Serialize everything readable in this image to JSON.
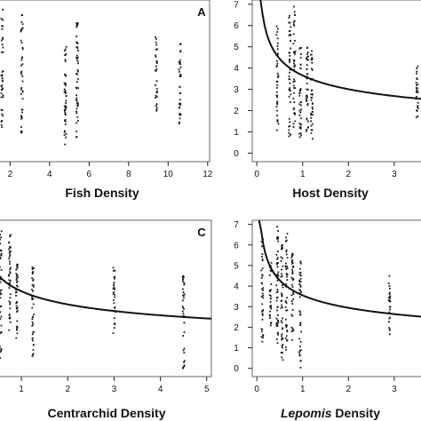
{
  "colors": {
    "points": "#1a1a1a",
    "curve": "#111111",
    "frame": "#666666"
  },
  "chart_data": [
    {
      "panel": "A",
      "type": "scatter",
      "xlabel": "Fish Density",
      "xlim": [
        1.4,
        12.1
      ],
      "ylim": [
        -0.4,
        7.2
      ],
      "xticks": [
        "2",
        "4",
        "6",
        "8",
        "10",
        "12"
      ],
      "yticks": [],
      "columns": [
        {
          "x": 1.6,
          "ymin": 1.2,
          "ymax": 6.9,
          "n": 42
        },
        {
          "x": 2.6,
          "ymin": 0.8,
          "ymax": 6.6,
          "n": 40
        },
        {
          "x": 4.8,
          "ymin": 0.4,
          "ymax": 5.2,
          "n": 45
        },
        {
          "x": 5.4,
          "ymin": 0.6,
          "ymax": 6.3,
          "n": 48
        },
        {
          "x": 9.4,
          "ymin": 1.9,
          "ymax": 5.7,
          "n": 30
        },
        {
          "x": 10.6,
          "ymin": 1.2,
          "ymax": 5.2,
          "n": 34
        }
      ],
      "fit": null
    },
    {
      "panel": "",
      "type": "scatter",
      "xlabel": "Host Density",
      "xlim": [
        -0.1,
        3.7
      ],
      "ylim": [
        -0.4,
        7.2
      ],
      "xticks": [
        "0",
        "1",
        "2",
        "3"
      ],
      "yticks": [
        "0",
        "1",
        "2",
        "3",
        "4",
        "5",
        "6",
        "7"
      ],
      "columns": [
        {
          "x": 0.45,
          "ymin": 0.8,
          "ymax": 6.1,
          "n": 40
        },
        {
          "x": 0.72,
          "ymin": 0.6,
          "ymax": 6.5,
          "n": 44
        },
        {
          "x": 0.82,
          "ymin": 1.0,
          "ymax": 6.9,
          "n": 44
        },
        {
          "x": 0.95,
          "ymin": 0.5,
          "ymax": 5.2,
          "n": 38
        },
        {
          "x": 1.1,
          "ymin": 1.0,
          "ymax": 5.0,
          "n": 38
        },
        {
          "x": 1.2,
          "ymin": 0.3,
          "ymax": 5.2,
          "n": 38
        },
        {
          "x": 3.5,
          "ymin": 1.6,
          "ymax": 4.1,
          "n": 26
        }
      ],
      "fit": {
        "x_start": 0.08,
        "x_end": 3.7,
        "a": 3.65,
        "b": -0.28
      }
    },
    {
      "panel": "C",
      "type": "scatter",
      "xlabel": "Centrarchid Density",
      "xlim": [
        0.5,
        5.1
      ],
      "ylim": [
        -0.4,
        7.2
      ],
      "xticks": [
        "1",
        "2",
        "3",
        "4",
        "5"
      ],
      "yticks": [],
      "columns": [
        {
          "x": 0.55,
          "ymin": 0.3,
          "ymax": 6.7,
          "n": 40
        },
        {
          "x": 0.75,
          "ymin": 1.0,
          "ymax": 6.5,
          "n": 46
        },
        {
          "x": 0.9,
          "ymin": 1.1,
          "ymax": 5.3,
          "n": 40
        },
        {
          "x": 1.25,
          "ymin": 0.2,
          "ymax": 5.0,
          "n": 40
        },
        {
          "x": 3.0,
          "ymin": 1.6,
          "ymax": 4.9,
          "n": 28
        },
        {
          "x": 4.5,
          "ymin": 0.0,
          "ymax": 4.5,
          "n": 38
        }
      ],
      "fit": {
        "x_start": 0.5,
        "x_end": 5.1,
        "a": 3.75,
        "b": -0.27
      }
    },
    {
      "panel": "",
      "type": "scatter",
      "xlabel_italic": "Lepomis",
      "xlabel": " Density",
      "xlim": [
        -0.1,
        3.7
      ],
      "ylim": [
        -0.4,
        7.2
      ],
      "xticks": [
        "0",
        "1",
        "2",
        "3"
      ],
      "yticks": [
        "0",
        "1",
        "2",
        "3",
        "4",
        "5",
        "6",
        "7"
      ],
      "columns": [
        {
          "x": 0.12,
          "ymin": 1.1,
          "ymax": 6.3,
          "n": 36
        },
        {
          "x": 0.3,
          "ymin": 2.0,
          "ymax": 5.3,
          "n": 28
        },
        {
          "x": 0.45,
          "ymin": 0.6,
          "ymax": 6.9,
          "n": 48
        },
        {
          "x": 0.55,
          "ymin": 0.3,
          "ymax": 6.0,
          "n": 44
        },
        {
          "x": 0.65,
          "ymin": 0.8,
          "ymax": 6.6,
          "n": 42
        },
        {
          "x": 0.78,
          "ymin": 1.1,
          "ymax": 5.9,
          "n": 40
        },
        {
          "x": 0.95,
          "ymin": 0.0,
          "ymax": 5.3,
          "n": 40
        },
        {
          "x": 2.9,
          "ymin": 1.6,
          "ymax": 4.5,
          "n": 26
        }
      ],
      "fit": {
        "x_start": 0.05,
        "x_end": 3.7,
        "a": 3.55,
        "b": -0.27
      }
    }
  ]
}
